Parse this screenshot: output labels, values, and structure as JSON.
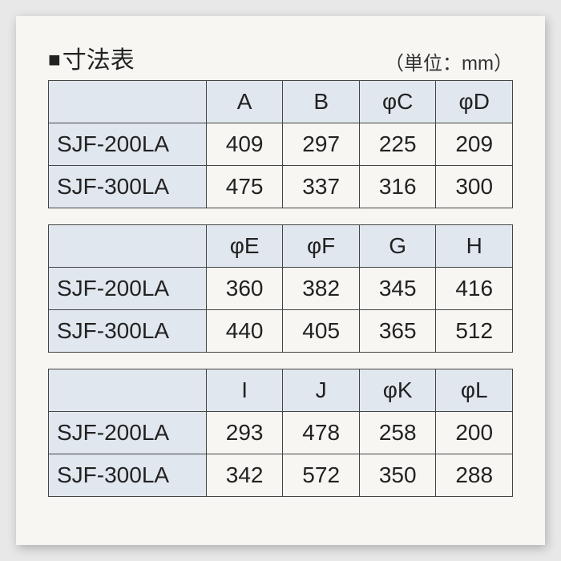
{
  "title_prefix": "■",
  "title_text": "寸法表",
  "unit_text": "（単位：mm）",
  "tables": [
    {
      "headers": [
        "A",
        "B",
        "φC",
        "φD"
      ],
      "rows": [
        {
          "model": "SJF-200LA",
          "vals": [
            "409",
            "297",
            "225",
            "209"
          ]
        },
        {
          "model": "SJF-300LA",
          "vals": [
            "475",
            "337",
            "316",
            "300"
          ]
        }
      ]
    },
    {
      "headers": [
        "φE",
        "φF",
        "G",
        "H"
      ],
      "rows": [
        {
          "model": "SJF-200LA",
          "vals": [
            "360",
            "382",
            "345",
            "416"
          ]
        },
        {
          "model": "SJF-300LA",
          "vals": [
            "440",
            "405",
            "365",
            "512"
          ]
        }
      ]
    },
    {
      "headers": [
        "I",
        "J",
        "φK",
        "φL"
      ],
      "rows": [
        {
          "model": "SJF-200LA",
          "vals": [
            "293",
            "478",
            "258",
            "200"
          ]
        },
        {
          "model": "SJF-300LA",
          "vals": [
            "342",
            "572",
            "350",
            "288"
          ]
        }
      ]
    }
  ]
}
